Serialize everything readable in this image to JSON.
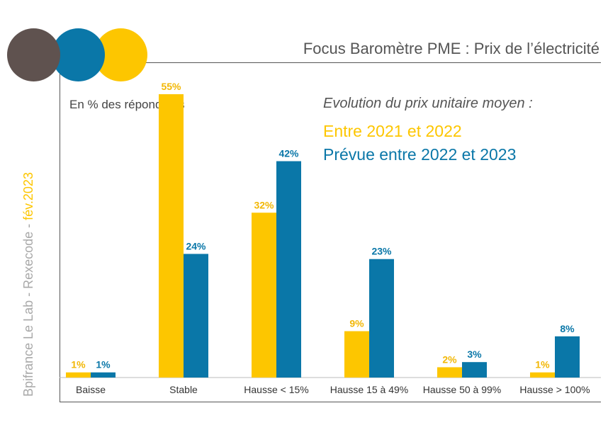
{
  "title": "Focus Baromètre PME : Prix de l’électricité",
  "side_label": {
    "source": "Bpifrance Le Lab - Rexecode - ",
    "date": "fév.2023"
  },
  "colors": {
    "brown": "#5f524f",
    "yellow": "#fdc600",
    "blue": "#0a77a8"
  },
  "chart_data": {
    "type": "bar",
    "subtitle": "En % des répondants",
    "legend_title": "Evolution du prix unitaire moyen :",
    "categories": [
      "Baisse",
      "Stable",
      "Hausse < 15%",
      "Hausse 15 à 49%",
      "Hausse 50 à 99%",
      "Hausse > 100%"
    ],
    "series": [
      {
        "name": "Entre 2021 et 2022",
        "color": "#fdc600",
        "values": [
          1,
          55,
          32,
          9,
          2,
          1
        ],
        "labels": [
          "1%",
          "55%",
          "32%",
          "9%",
          "2%",
          "1%"
        ]
      },
      {
        "name": "Prévue entre 2022 et 2023",
        "color": "#0a77a8",
        "values": [
          1,
          24,
          42,
          23,
          3,
          8
        ],
        "labels": [
          "1%",
          "24%",
          "42%",
          "23%",
          "3%",
          "8%"
        ]
      }
    ],
    "ylim": [
      0,
      55
    ],
    "grid": false,
    "legend_position": "top-right"
  }
}
